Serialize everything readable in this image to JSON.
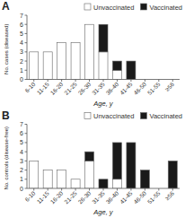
{
  "chart_data": [
    {
      "type": "bar",
      "stacked": true,
      "title": "A",
      "categories": [
        "6-10",
        "11-15",
        "16-20",
        "21-25",
        "26-30",
        "31-35",
        "36-40",
        "41-45",
        "46-50",
        "51-55",
        "≥56"
      ],
      "series": [
        {
          "name": "Unvaccinated",
          "color": "#ffffff",
          "values": [
            3,
            3,
            4,
            4,
            6,
            3,
            1,
            0,
            0,
            0,
            0
          ]
        },
        {
          "name": "Vaccinated",
          "color": "#1a1a1a",
          "values": [
            0,
            0,
            0,
            0,
            0,
            3,
            1,
            2,
            0,
            0,
            0
          ]
        }
      ],
      "xlabel": "Age, y",
      "ylabel": "No. cases (diseased)",
      "ylim": [
        0,
        7
      ],
      "yticks": [
        0,
        1,
        2,
        3,
        4,
        5,
        6,
        7
      ],
      "grid": false,
      "legend": "upper right"
    },
    {
      "type": "bar",
      "stacked": true,
      "title": "B",
      "categories": [
        "6-10",
        "11-15",
        "16-20",
        "21-25",
        "26-30",
        "31-35",
        "36-40",
        "41-45",
        "46-50",
        "51-55",
        "≥56"
      ],
      "series": [
        {
          "name": "Unvaccinated",
          "color": "#ffffff",
          "values": [
            3,
            2,
            2,
            1,
            3,
            0,
            1,
            0,
            0,
            0,
            0
          ]
        },
        {
          "name": "Vaccinated",
          "color": "#1a1a1a",
          "values": [
            0,
            0,
            0,
            0,
            1,
            1,
            4,
            5,
            2,
            0,
            3
          ]
        }
      ],
      "xlabel": "Age, y",
      "ylabel": "No. controls (disease-free)",
      "ylim": [
        0,
        7
      ],
      "yticks": [
        0,
        1,
        2,
        3,
        4,
        5,
        6,
        7
      ],
      "grid": false,
      "legend": "upper right"
    }
  ]
}
